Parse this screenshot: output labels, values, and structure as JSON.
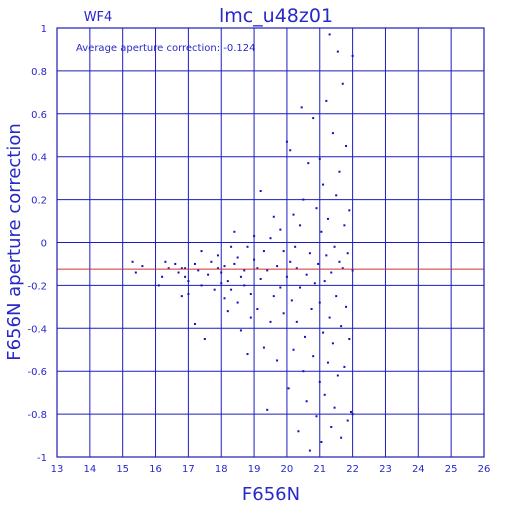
{
  "colors": {
    "axis": "#1c1cbe",
    "text": "#2828c8",
    "point": "#1010c0",
    "ref_line": "#d03030"
  },
  "chart_data": {
    "type": "scatter",
    "title": "lmc_u48z01",
    "corner_label": "WF4",
    "annotation": "Average aperture correction: -0.124",
    "xlabel": "F656N",
    "ylabel": "F656N aperture correction",
    "xlim": [
      13,
      26
    ],
    "ylim": [
      -1,
      1
    ],
    "x_ticks": [
      "13",
      "14",
      "15",
      "16",
      "17",
      "18",
      "19",
      "20",
      "21",
      "22",
      "23",
      "24",
      "25",
      "26"
    ],
    "y_ticks": [
      "-1",
      "-0.8",
      "-0.6",
      "-0.4",
      "-0.2",
      "0",
      "0.2",
      "0.4",
      "0.6",
      "0.8",
      "1"
    ],
    "reference_line_y": -0.124,
    "grid": true,
    "points": [
      [
        15.3,
        -0.09
      ],
      [
        15.4,
        -0.14
      ],
      [
        15.6,
        -0.11
      ],
      [
        16.1,
        -0.2
      ],
      [
        16.2,
        -0.16
      ],
      [
        16.3,
        -0.09
      ],
      [
        16.4,
        -0.12
      ],
      [
        16.6,
        -0.1
      ],
      [
        16.7,
        -0.14
      ],
      [
        16.8,
        -0.25
      ],
      [
        16.8,
        -0.12
      ],
      [
        16.9,
        -0.16
      ],
      [
        16.9,
        -0.12
      ],
      [
        17.0,
        -0.24
      ],
      [
        17.0,
        -0.18
      ],
      [
        17.2,
        -0.38
      ],
      [
        17.2,
        -0.1
      ],
      [
        17.3,
        -0.13
      ],
      [
        17.4,
        -0.2
      ],
      [
        17.4,
        -0.04
      ],
      [
        17.5,
        -0.45
      ],
      [
        17.6,
        -0.15
      ],
      [
        17.7,
        -0.09
      ],
      [
        17.8,
        -0.22
      ],
      [
        17.9,
        -0.06
      ],
      [
        17.9,
        -0.12
      ],
      [
        18.0,
        -0.19
      ],
      [
        18.0,
        -0.14
      ],
      [
        18.1,
        -0.26
      ],
      [
        18.1,
        -0.11
      ],
      [
        18.2,
        -0.18
      ],
      [
        18.2,
        -0.32
      ],
      [
        18.3,
        -0.02
      ],
      [
        18.3,
        -0.22
      ],
      [
        18.4,
        0.05
      ],
      [
        18.4,
        -0.1
      ],
      [
        18.5,
        -0.28
      ],
      [
        18.5,
        -0.07
      ],
      [
        18.6,
        -0.16
      ],
      [
        18.6,
        -0.41
      ],
      [
        18.7,
        -0.2
      ],
      [
        18.7,
        -0.13
      ],
      [
        18.8,
        -0.52
      ],
      [
        18.8,
        -0.02
      ],
      [
        18.9,
        -0.35
      ],
      [
        18.9,
        -0.24
      ],
      [
        19.0,
        -0.08
      ],
      [
        19.0,
        0.03
      ],
      [
        19.1,
        -0.12
      ],
      [
        19.1,
        -0.31
      ],
      [
        19.2,
        0.24
      ],
      [
        19.2,
        -0.17
      ],
      [
        19.3,
        -0.49
      ],
      [
        19.3,
        -0.04
      ],
      [
        19.4,
        -0.78
      ],
      [
        19.4,
        -0.13
      ],
      [
        19.5,
        -0.37
      ],
      [
        19.5,
        0.02
      ],
      [
        19.6,
        0.12
      ],
      [
        19.6,
        -0.25
      ],
      [
        19.7,
        -0.11
      ],
      [
        19.7,
        -0.55
      ],
      [
        19.8,
        -0.21
      ],
      [
        19.8,
        0.06
      ],
      [
        19.9,
        -0.33
      ],
      [
        19.9,
        -0.04
      ],
      [
        20.0,
        -0.16
      ],
      [
        20.0,
        0.47
      ],
      [
        20.05,
        -0.68
      ],
      [
        20.1,
        -0.09
      ],
      [
        20.1,
        0.43
      ],
      [
        20.15,
        -0.27
      ],
      [
        20.2,
        -0.5
      ],
      [
        20.2,
        0.13
      ],
      [
        20.25,
        -0.02
      ],
      [
        20.3,
        -0.12
      ],
      [
        20.3,
        -0.37
      ],
      [
        20.35,
        -0.88
      ],
      [
        20.4,
        0.08
      ],
      [
        20.4,
        -0.21
      ],
      [
        20.45,
        0.63
      ],
      [
        20.5,
        -0.6
      ],
      [
        20.5,
        0.2
      ],
      [
        20.55,
        -0.44
      ],
      [
        20.6,
        -0.15
      ],
      [
        20.6,
        -0.74
      ],
      [
        20.65,
        0.37
      ],
      [
        20.7,
        -0.05
      ],
      [
        20.7,
        -0.97
      ],
      [
        20.75,
        -0.31
      ],
      [
        20.8,
        0.58
      ],
      [
        20.8,
        -0.53
      ],
      [
        20.85,
        -0.19
      ],
      [
        20.9,
        0.16
      ],
      [
        20.9,
        -0.81
      ],
      [
        20.95,
        -0.1
      ],
      [
        21.0,
        0.39
      ],
      [
        21.0,
        -0.65
      ],
      [
        21.0,
        -0.28
      ],
      [
        21.05,
        0.05
      ],
      [
        21.05,
        -0.93
      ],
      [
        21.1,
        -0.42
      ],
      [
        21.1,
        0.27
      ],
      [
        21.15,
        -0.18
      ],
      [
        21.15,
        -0.71
      ],
      [
        21.2,
        0.66
      ],
      [
        21.2,
        -0.06
      ],
      [
        21.25,
        -0.56
      ],
      [
        21.25,
        0.11
      ],
      [
        21.3,
        -0.35
      ],
      [
        21.3,
        0.97
      ],
      [
        21.35,
        -0.86
      ],
      [
        21.35,
        -0.14
      ],
      [
        21.4,
        0.51
      ],
      [
        21.4,
        -0.47
      ],
      [
        21.45,
        -0.02
      ],
      [
        21.45,
        -0.77
      ],
      [
        21.5,
        0.22
      ],
      [
        21.5,
        -0.25
      ],
      [
        21.55,
        0.89
      ],
      [
        21.55,
        -0.62
      ],
      [
        21.6,
        -0.09
      ],
      [
        21.6,
        0.33
      ],
      [
        21.65,
        -0.91
      ],
      [
        21.65,
        -0.39
      ],
      [
        21.7,
        0.74
      ],
      [
        21.7,
        -0.12
      ],
      [
        21.75,
        -0.58
      ],
      [
        21.75,
        0.08
      ],
      [
        21.8,
        -0.3
      ],
      [
        21.8,
        0.45
      ],
      [
        21.85,
        -0.83
      ],
      [
        21.85,
        -0.05
      ],
      [
        21.9,
        0.15
      ],
      [
        21.9,
        -0.45
      ],
      [
        21.95,
        -0.79
      ],
      [
        22.0,
        0.87
      ],
      [
        22.0,
        -0.8
      ],
      [
        22.0,
        -0.13
      ]
    ]
  }
}
